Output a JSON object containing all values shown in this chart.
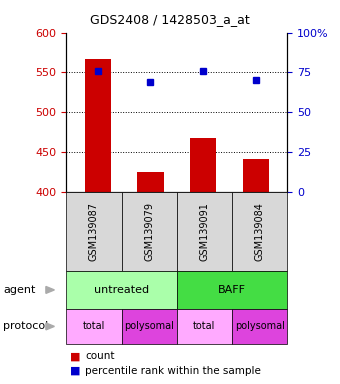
{
  "title": "GDS2408 / 1428503_a_at",
  "samples": [
    "GSM139087",
    "GSM139079",
    "GSM139091",
    "GSM139084"
  ],
  "bar_values": [
    567,
    425,
    468,
    441
  ],
  "percentile_values": [
    76,
    69,
    76,
    70
  ],
  "bar_color": "#cc0000",
  "dot_color": "#0000cc",
  "ylim_left": [
    400,
    600
  ],
  "ylim_right": [
    0,
    100
  ],
  "yticks_left": [
    400,
    450,
    500,
    550,
    600
  ],
  "yticks_right": [
    0,
    25,
    50,
    75,
    100
  ],
  "ytick_labels_right": [
    "0",
    "25",
    "50",
    "75",
    "100%"
  ],
  "grid_values": [
    450,
    500,
    550
  ],
  "agent_labels": [
    "untreated",
    "BAFF"
  ],
  "agent_colors": [
    "#aaffaa",
    "#44dd44"
  ],
  "protocol_labels": [
    "total",
    "polysomal",
    "total",
    "polysomal"
  ],
  "protocol_colors": [
    "#ffaaff",
    "#dd44dd",
    "#ffaaff",
    "#dd44dd"
  ],
  "label_agent": "agent",
  "label_protocol": "protocol",
  "legend_count": "count",
  "legend_percentile": "percentile rank within the sample",
  "bg_color": "#d8d8d8",
  "plot_bg": "#ffffff"
}
